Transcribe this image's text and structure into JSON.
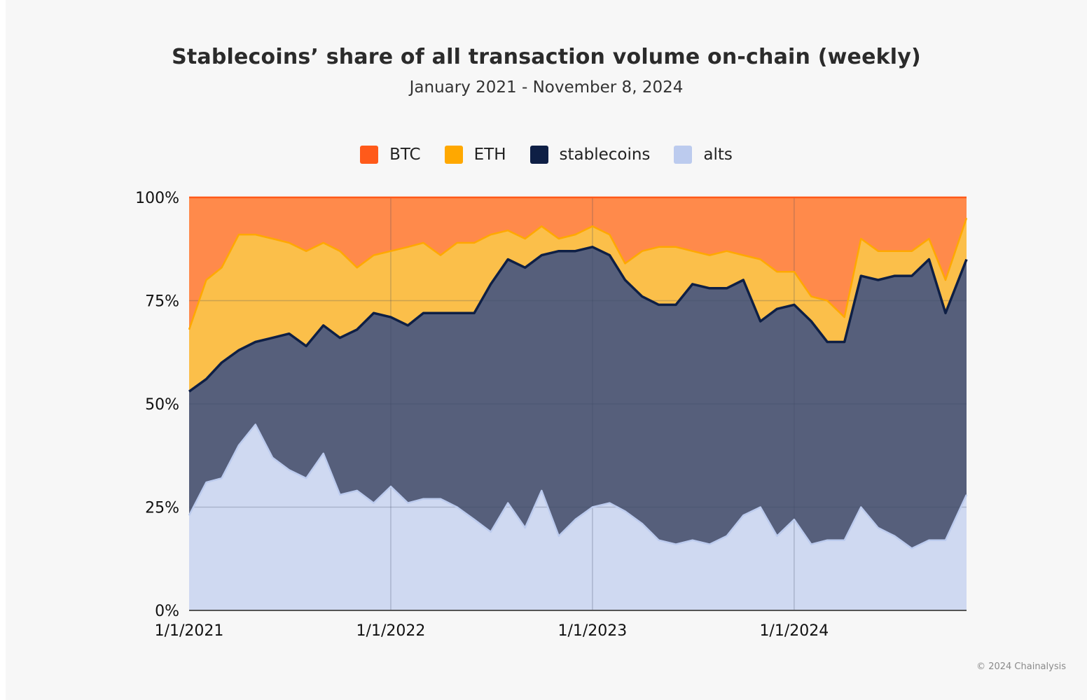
{
  "chart_data": {
    "type": "area",
    "title": "Stablecoins’ share of all transaction volume on-chain (weekly)",
    "subtitle": "January 2021 - November 8, 2024",
    "stacked": true,
    "normalized_percent": true,
    "ylim": [
      0,
      100
    ],
    "y_ticks": [
      0,
      25,
      50,
      75,
      100
    ],
    "y_tick_labels": [
      "0%",
      "25%",
      "50%",
      "75%",
      "100%"
    ],
    "x_tick_labels": [
      "1/1/2021",
      "1/1/2022",
      "1/1/2023",
      "1/1/2024"
    ],
    "x_range": [
      "2021-01-01",
      "2024-11-08"
    ],
    "grid": true,
    "legend_position": "top",
    "legend": [
      {
        "name": "BTC",
        "color": "#ff5a1a"
      },
      {
        "name": "ETH",
        "color": "#ffa800"
      },
      {
        "name": "stablecoins",
        "color": "#0e1f45"
      },
      {
        "name": "alts",
        "color": "#bccbee"
      }
    ],
    "x": [
      "2021-01-01",
      "2021-02-01",
      "2021-03-01",
      "2021-04-01",
      "2021-05-01",
      "2021-06-01",
      "2021-07-01",
      "2021-08-01",
      "2021-09-01",
      "2021-10-01",
      "2021-11-01",
      "2021-12-01",
      "2022-01-01",
      "2022-02-01",
      "2022-03-01",
      "2022-04-01",
      "2022-05-01",
      "2022-06-01",
      "2022-07-01",
      "2022-08-01",
      "2022-09-01",
      "2022-10-01",
      "2022-11-01",
      "2022-12-01",
      "2023-01-01",
      "2023-02-01",
      "2023-03-01",
      "2023-04-01",
      "2023-05-01",
      "2023-06-01",
      "2023-07-01",
      "2023-08-01",
      "2023-09-01",
      "2023-10-01",
      "2023-11-01",
      "2023-12-01",
      "2024-01-01",
      "2024-02-01",
      "2024-03-01",
      "2024-04-01",
      "2024-05-01",
      "2024-06-01",
      "2024-07-01",
      "2024-08-01",
      "2024-09-01",
      "2024-10-01",
      "2024-11-08"
    ],
    "series": [
      {
        "name": "alts",
        "values": [
          23,
          31,
          32,
          40,
          45,
          37,
          34,
          32,
          38,
          28,
          29,
          26,
          30,
          26,
          27,
          27,
          25,
          22,
          19,
          26,
          20,
          29,
          18,
          22,
          25,
          26,
          24,
          21,
          17,
          16,
          17,
          16,
          18,
          23,
          25,
          18,
          22,
          16,
          17,
          17,
          25,
          20,
          18,
          15,
          17,
          17,
          28
        ]
      },
      {
        "name": "stablecoins",
        "values": [
          30,
          25,
          28,
          23,
          20,
          29,
          33,
          32,
          31,
          38,
          39,
          46,
          41,
          43,
          45,
          45,
          47,
          50,
          60,
          59,
          63,
          57,
          69,
          65,
          63,
          60,
          56,
          55,
          57,
          58,
          62,
          62,
          60,
          57,
          45,
          55,
          52,
          54,
          48,
          48,
          56,
          60,
          63,
          66,
          68,
          55,
          57
        ]
      },
      {
        "name": "ETH",
        "values": [
          15,
          24,
          23,
          28,
          26,
          24,
          22,
          23,
          20,
          21,
          15,
          14,
          16,
          19,
          17,
          14,
          17,
          17,
          12,
          7,
          7,
          7,
          3,
          4,
          5,
          5,
          4,
          11,
          14,
          14,
          8,
          8,
          9,
          6,
          15,
          9,
          8,
          6,
          10,
          6,
          9,
          7,
          6,
          6,
          5,
          8,
          10
        ]
      },
      {
        "name": "BTC",
        "values": [
          32,
          20,
          17,
          9,
          9,
          10,
          11,
          13,
          11,
          13,
          17,
          14,
          13,
          12,
          11,
          14,
          11,
          11,
          9,
          8,
          10,
          7,
          10,
          9,
          7,
          9,
          16,
          13,
          12,
          12,
          13,
          14,
          13,
          14,
          15,
          18,
          18,
          24,
          25,
          29,
          10,
          13,
          13,
          13,
          10,
          20,
          5
        ]
      }
    ]
  }
}
